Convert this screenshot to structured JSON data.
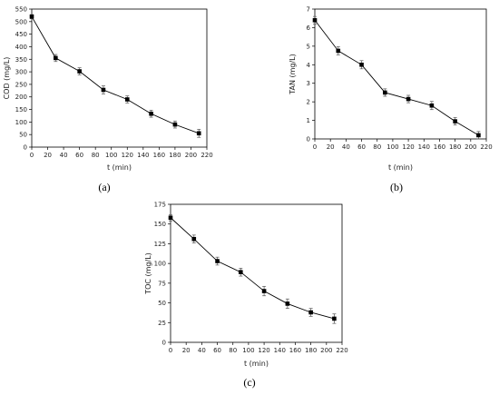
{
  "chart_data": [
    {
      "type": "line",
      "panel_label": "(a)",
      "xlabel": "t (min)",
      "ylabel": "COD (mg/L)",
      "xlim": [
        0,
        220
      ],
      "ylim": [
        0,
        550
      ],
      "xticks": [
        "0",
        "20",
        "40",
        "60",
        "80",
        "100",
        "120",
        "140",
        "160",
        "180",
        "200",
        "220"
      ],
      "yticks": [
        "0",
        "50",
        "100",
        "150",
        "200",
        "250",
        "300",
        "350",
        "400",
        "450",
        "500",
        "550"
      ],
      "series": [
        {
          "x": [
            0,
            30,
            60,
            90,
            120,
            150,
            180,
            210
          ],
          "values": [
            520,
            355,
            302,
            228,
            190,
            133,
            90,
            55
          ],
          "error": [
            8,
            14,
            14,
            16,
            14,
            14,
            14,
            16
          ]
        }
      ]
    },
    {
      "type": "line",
      "panel_label": "(b)",
      "xlabel": "t (min)",
      "ylabel": "TAN (mg/L)",
      "xlim": [
        0,
        220
      ],
      "ylim": [
        0,
        7
      ],
      "xticks": [
        "0",
        "20",
        "40",
        "60",
        "80",
        "100",
        "120",
        "140",
        "160",
        "180",
        "200",
        "220"
      ],
      "yticks": [
        "0",
        "1",
        "2",
        "3",
        "4",
        "5",
        "6",
        "7"
      ],
      "series": [
        {
          "x": [
            0,
            30,
            60,
            90,
            120,
            150,
            180,
            210
          ],
          "values": [
            6.4,
            4.75,
            4.0,
            2.5,
            2.15,
            1.8,
            0.95,
            0.2
          ],
          "error": [
            0.2,
            0.22,
            0.22,
            0.2,
            0.2,
            0.22,
            0.2,
            0.2
          ]
        }
      ]
    },
    {
      "type": "line",
      "panel_label": "(c)",
      "xlabel": "t (min)",
      "ylabel": "TOC (mg/L)",
      "xlim": [
        0,
        220
      ],
      "ylim": [
        0,
        175
      ],
      "xticks": [
        "0",
        "20",
        "40",
        "60",
        "80",
        "100",
        "120",
        "140",
        "160",
        "180",
        "200",
        "220"
      ],
      "yticks": [
        "0",
        "25",
        "50",
        "75",
        "100",
        "125",
        "150",
        "175"
      ],
      "series": [
        {
          "x": [
            0,
            30,
            60,
            90,
            120,
            150,
            180,
            210
          ],
          "values": [
            158,
            131,
            103,
            89,
            65,
            49,
            38,
            30
          ],
          "error": [
            4,
            5,
            5,
            5,
            6,
            6,
            5,
            6
          ]
        }
      ]
    }
  ]
}
